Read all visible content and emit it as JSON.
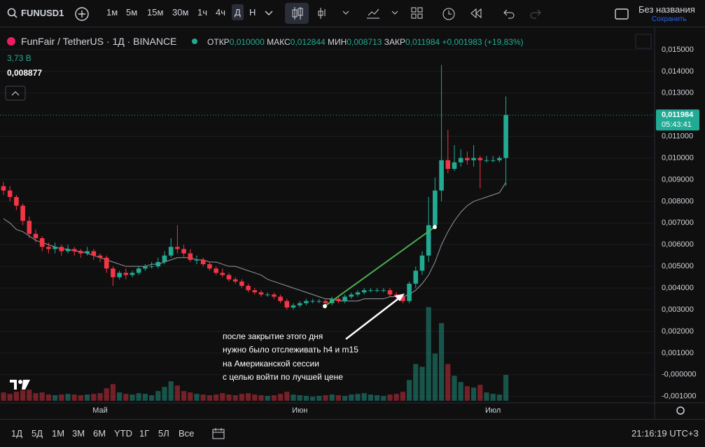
{
  "toolbar": {
    "symbol": "FUNUSD1",
    "intervals": [
      "1м",
      "5м",
      "15м",
      "30м",
      "1ч",
      "4ч",
      "Д",
      "Н"
    ],
    "layout_name": "Без названия",
    "save": "Сохранить"
  },
  "legend": {
    "symbol": "FunFair / TetherUS · 1Д · BINANCE",
    "open_label": "ОТКР",
    "open": "0,010000",
    "high_label": "МАКС",
    "high": "0,012844",
    "low_label": "МИН",
    "low": "0,008713",
    "close_label": "ЗАКР",
    "close": "0,011984",
    "change": "+0,001983 (+19,83%)",
    "volume": "3,73 B",
    "ma": "0,008877"
  },
  "chart_data": {
    "type": "candlestick",
    "categories": [
      null,
      null,
      null,
      null,
      null,
      null,
      null,
      null,
      null,
      null,
      null,
      null,
      null,
      null,
      null,
      "Май",
      null,
      null,
      null,
      null,
      null,
      null,
      null,
      null,
      null,
      null,
      null,
      null,
      null,
      null,
      null,
      null,
      null,
      null,
      null,
      null,
      null,
      null,
      null,
      null,
      null,
      null,
      null,
      null,
      null,
      null,
      "Июн",
      null,
      null,
      null,
      null,
      null,
      null,
      null,
      null,
      null,
      null,
      null,
      null,
      null,
      null,
      null,
      null,
      null,
      null,
      null,
      null,
      null,
      null,
      null,
      null,
      null,
      null,
      null,
      null,
      null,
      "Июл",
      null,
      null
    ],
    "open": [
      0.0087,
      0.0085,
      0.0082,
      0.0078,
      0.0071,
      0.0065,
      0.0063,
      0.0059,
      0.0058,
      0.0059,
      0.0057,
      0.0058,
      0.0057,
      0.0056,
      0.0057,
      0.0055,
      0.0054,
      0.0049,
      0.0045,
      0.0047,
      0.0046,
      0.0047,
      0.0049,
      0.005,
      0.005,
      0.0052,
      0.0055,
      0.0059,
      0.0058,
      0.0056,
      0.0053,
      0.0053,
      0.0051,
      0.0049,
      0.0047,
      0.0046,
      0.0044,
      0.0043,
      0.0041,
      0.0039,
      0.0038,
      0.0037,
      0.0037,
      0.0036,
      0.0034,
      0.0031,
      0.0032,
      0.0033,
      0.0034,
      0.0034,
      0.0034,
      0.0033,
      0.0035,
      0.0034,
      0.0036,
      0.0037,
      0.0038,
      0.0039,
      0.0039,
      0.0039,
      0.0039,
      0.0037,
      0.0036,
      0.0034,
      0.0042,
      0.0048,
      0.0055,
      0.0069,
      0.0085,
      0.0099,
      0.0095,
      0.0098,
      0.01,
      0.0099,
      0.01,
      0.0099,
      0.0099,
      0.0099,
      0.01
    ],
    "high": [
      0.0089,
      0.0087,
      0.0083,
      0.0079,
      0.0073,
      0.0067,
      0.0064,
      0.0061,
      0.0061,
      0.006,
      0.006,
      0.0059,
      0.0058,
      0.0059,
      0.0058,
      0.0056,
      0.0055,
      0.005,
      0.0048,
      0.0049,
      0.0048,
      0.005,
      0.0051,
      0.0052,
      0.0054,
      0.0057,
      0.0063,
      0.0069,
      0.006,
      0.0058,
      0.0055,
      0.0054,
      0.0052,
      0.005,
      0.0049,
      0.0047,
      0.0045,
      0.0044,
      0.0042,
      0.004,
      0.0039,
      0.0038,
      0.0038,
      0.0037,
      0.0035,
      0.0033,
      0.0034,
      0.0035,
      0.0035,
      0.0035,
      0.0035,
      0.0036,
      0.0036,
      0.0037,
      0.0038,
      0.0039,
      0.004,
      0.004,
      0.004,
      0.004,
      0.004,
      0.0038,
      0.0037,
      0.0043,
      0.005,
      0.0057,
      0.0082,
      0.0091,
      0.0143,
      0.0113,
      0.0106,
      0.0104,
      0.0103,
      0.0106,
      0.0101,
      0.0101,
      0.0101,
      0.0101,
      0.012844
    ],
    "low": [
      0.0083,
      0.008,
      0.0076,
      0.0069,
      0.0063,
      0.0061,
      0.0057,
      0.0056,
      0.0056,
      0.0055,
      0.0056,
      0.0055,
      0.0054,
      0.0055,
      0.0053,
      0.0052,
      0.0047,
      0.0041,
      0.0044,
      0.0044,
      0.0045,
      0.0046,
      0.0048,
      0.0049,
      0.0049,
      0.0051,
      0.0054,
      0.0056,
      0.0054,
      0.0052,
      0.0051,
      0.005,
      0.0048,
      0.0046,
      0.0045,
      0.0043,
      0.0042,
      0.004,
      0.0038,
      0.0037,
      0.0036,
      0.0036,
      0.0035,
      0.0033,
      0.003,
      0.003,
      0.0031,
      0.0032,
      0.0033,
      0.0033,
      0.0032,
      0.0032,
      0.0033,
      0.0033,
      0.0035,
      0.0036,
      0.0037,
      0.0038,
      0.0038,
      0.0038,
      0.0036,
      0.0034,
      0.0033,
      0.0033,
      0.004,
      0.0046,
      0.0052,
      0.0068,
      0.008,
      0.0093,
      0.0094,
      0.0096,
      0.0097,
      0.0096,
      0.0086,
      0.0098,
      0.0098,
      0.0098,
      0.008713
    ],
    "close": [
      0.0085,
      0.0082,
      0.0078,
      0.0071,
      0.0065,
      0.0063,
      0.0059,
      0.0058,
      0.0059,
      0.0057,
      0.0058,
      0.0057,
      0.0056,
      0.0057,
      0.0055,
      0.0054,
      0.0049,
      0.0045,
      0.0047,
      0.0046,
      0.0047,
      0.0049,
      0.005,
      0.005,
      0.0052,
      0.0055,
      0.0059,
      0.0058,
      0.0056,
      0.0053,
      0.0053,
      0.0051,
      0.0049,
      0.0047,
      0.0046,
      0.0044,
      0.0043,
      0.0041,
      0.0039,
      0.0038,
      0.0037,
      0.0037,
      0.0036,
      0.0034,
      0.0031,
      0.0032,
      0.0033,
      0.0034,
      0.0034,
      0.0034,
      0.0033,
      0.0035,
      0.0034,
      0.0036,
      0.0037,
      0.0038,
      0.0039,
      0.0039,
      0.0039,
      0.0039,
      0.0037,
      0.0036,
      0.0034,
      0.0042,
      0.0048,
      0.0055,
      0.0069,
      0.0085,
      0.0099,
      0.0095,
      0.0098,
      0.01,
      0.0099,
      0.01,
      0.0099,
      0.0099,
      0.0099,
      0.01,
      0.011984
    ],
    "volume": [
      1.2,
      1.0,
      1.3,
      1.5,
      1.6,
      1.1,
      1.2,
      0.9,
      0.8,
      0.9,
      1.0,
      0.9,
      0.8,
      0.9,
      1.0,
      1.1,
      1.8,
      2.4,
      1.2,
      1.0,
      0.9,
      1.1,
      1.0,
      0.8,
      1.4,
      2.0,
      2.8,
      2.2,
      1.4,
      1.2,
      1.0,
      0.9,
      0.8,
      0.9,
      1.1,
      0.9,
      0.8,
      1.0,
      1.1,
      0.9,
      0.8,
      0.7,
      0.8,
      1.0,
      1.3,
      0.9,
      0.8,
      0.7,
      0.6,
      0.7,
      0.8,
      0.9,
      0.8,
      0.7,
      0.9,
      1.0,
      1.1,
      0.9,
      0.8,
      0.7,
      0.9,
      1.0,
      1.3,
      3.0,
      5.3,
      4.9,
      13.5,
      6.8,
      11.2,
      5.3,
      3.6,
      2.7,
      2.1,
      1.9,
      2.3,
      1.2,
      1.0,
      0.9,
      3.73
    ],
    "ma": [
      0.0072,
      0.007,
      0.0067,
      0.0066,
      0.0064,
      0.0062,
      0.0061,
      0.006,
      0.0059,
      0.0058,
      0.0058,
      0.0057,
      0.0057,
      0.0056,
      0.0055,
      0.0054,
      0.0053,
      0.0052,
      0.0051,
      0.005,
      0.005,
      0.005,
      0.005,
      0.0051,
      0.0051,
      0.0052,
      0.0053,
      0.0054,
      0.0054,
      0.0054,
      0.0053,
      0.0053,
      0.0052,
      0.0052,
      0.0051,
      0.005,
      0.005,
      0.0049,
      0.0048,
      0.0047,
      0.0046,
      0.0044,
      0.0043,
      0.0042,
      0.0041,
      0.004,
      0.0039,
      0.0038,
      0.0037,
      0.0036,
      0.0035,
      0.0035,
      0.0034,
      0.0034,
      0.0034,
      0.0034,
      0.0035,
      0.0035,
      0.0035,
      0.0035,
      0.0036,
      0.0036,
      0.0036,
      0.0037,
      0.0039,
      0.0042,
      0.0046,
      0.0052,
      0.006,
      0.0066,
      0.0071,
      0.0075,
      0.0078,
      0.008,
      0.0081,
      0.0082,
      0.0083,
      0.0084,
      0.008877
    ],
    "up_color": "#22ab94",
    "down_color": "#f23645",
    "ma_color": "#9598a1",
    "ylim": [
      -0.0013,
      0.016
    ],
    "yticks": [
      {
        "value": 0.015,
        "label": "0,015000"
      },
      {
        "value": 0.014,
        "label": "0,014000"
      },
      {
        "value": 0.013,
        "label": "0,013000"
      },
      {
        "value": 0.011,
        "label": "0,011000"
      },
      {
        "value": 0.01,
        "label": "0,010000"
      },
      {
        "value": 0.009,
        "label": "0,009000"
      },
      {
        "value": 0.008,
        "label": "0,008000"
      },
      {
        "value": 0.007,
        "label": "0,007000"
      },
      {
        "value": 0.006,
        "label": "0,006000"
      },
      {
        "value": 0.005,
        "label": "0,005000"
      },
      {
        "value": 0.004,
        "label": "0,004000"
      },
      {
        "value": 0.003,
        "label": "0,003000"
      },
      {
        "value": 0.002,
        "label": "0,002000"
      },
      {
        "value": 0.001,
        "label": "0,001000"
      },
      {
        "value": 0,
        "label": "-0,000000"
      },
      {
        "value": -0.001,
        "label": "-0,001000"
      }
    ],
    "last_price_label": "0,011984",
    "countdown": "05:43:41",
    "annotation": [
      "после закрытие этого дня",
      "нужно было отслеживать h4 и m15",
      "на Американской сессии",
      "с целью войти по лучшей цене"
    ]
  },
  "bottom_bar": {
    "ranges": [
      "1Д",
      "5Д",
      "1М",
      "3М",
      "6М",
      "YTD",
      "1Г",
      "5Л",
      "Все"
    ],
    "time": "21:16:19 UTC+3"
  }
}
